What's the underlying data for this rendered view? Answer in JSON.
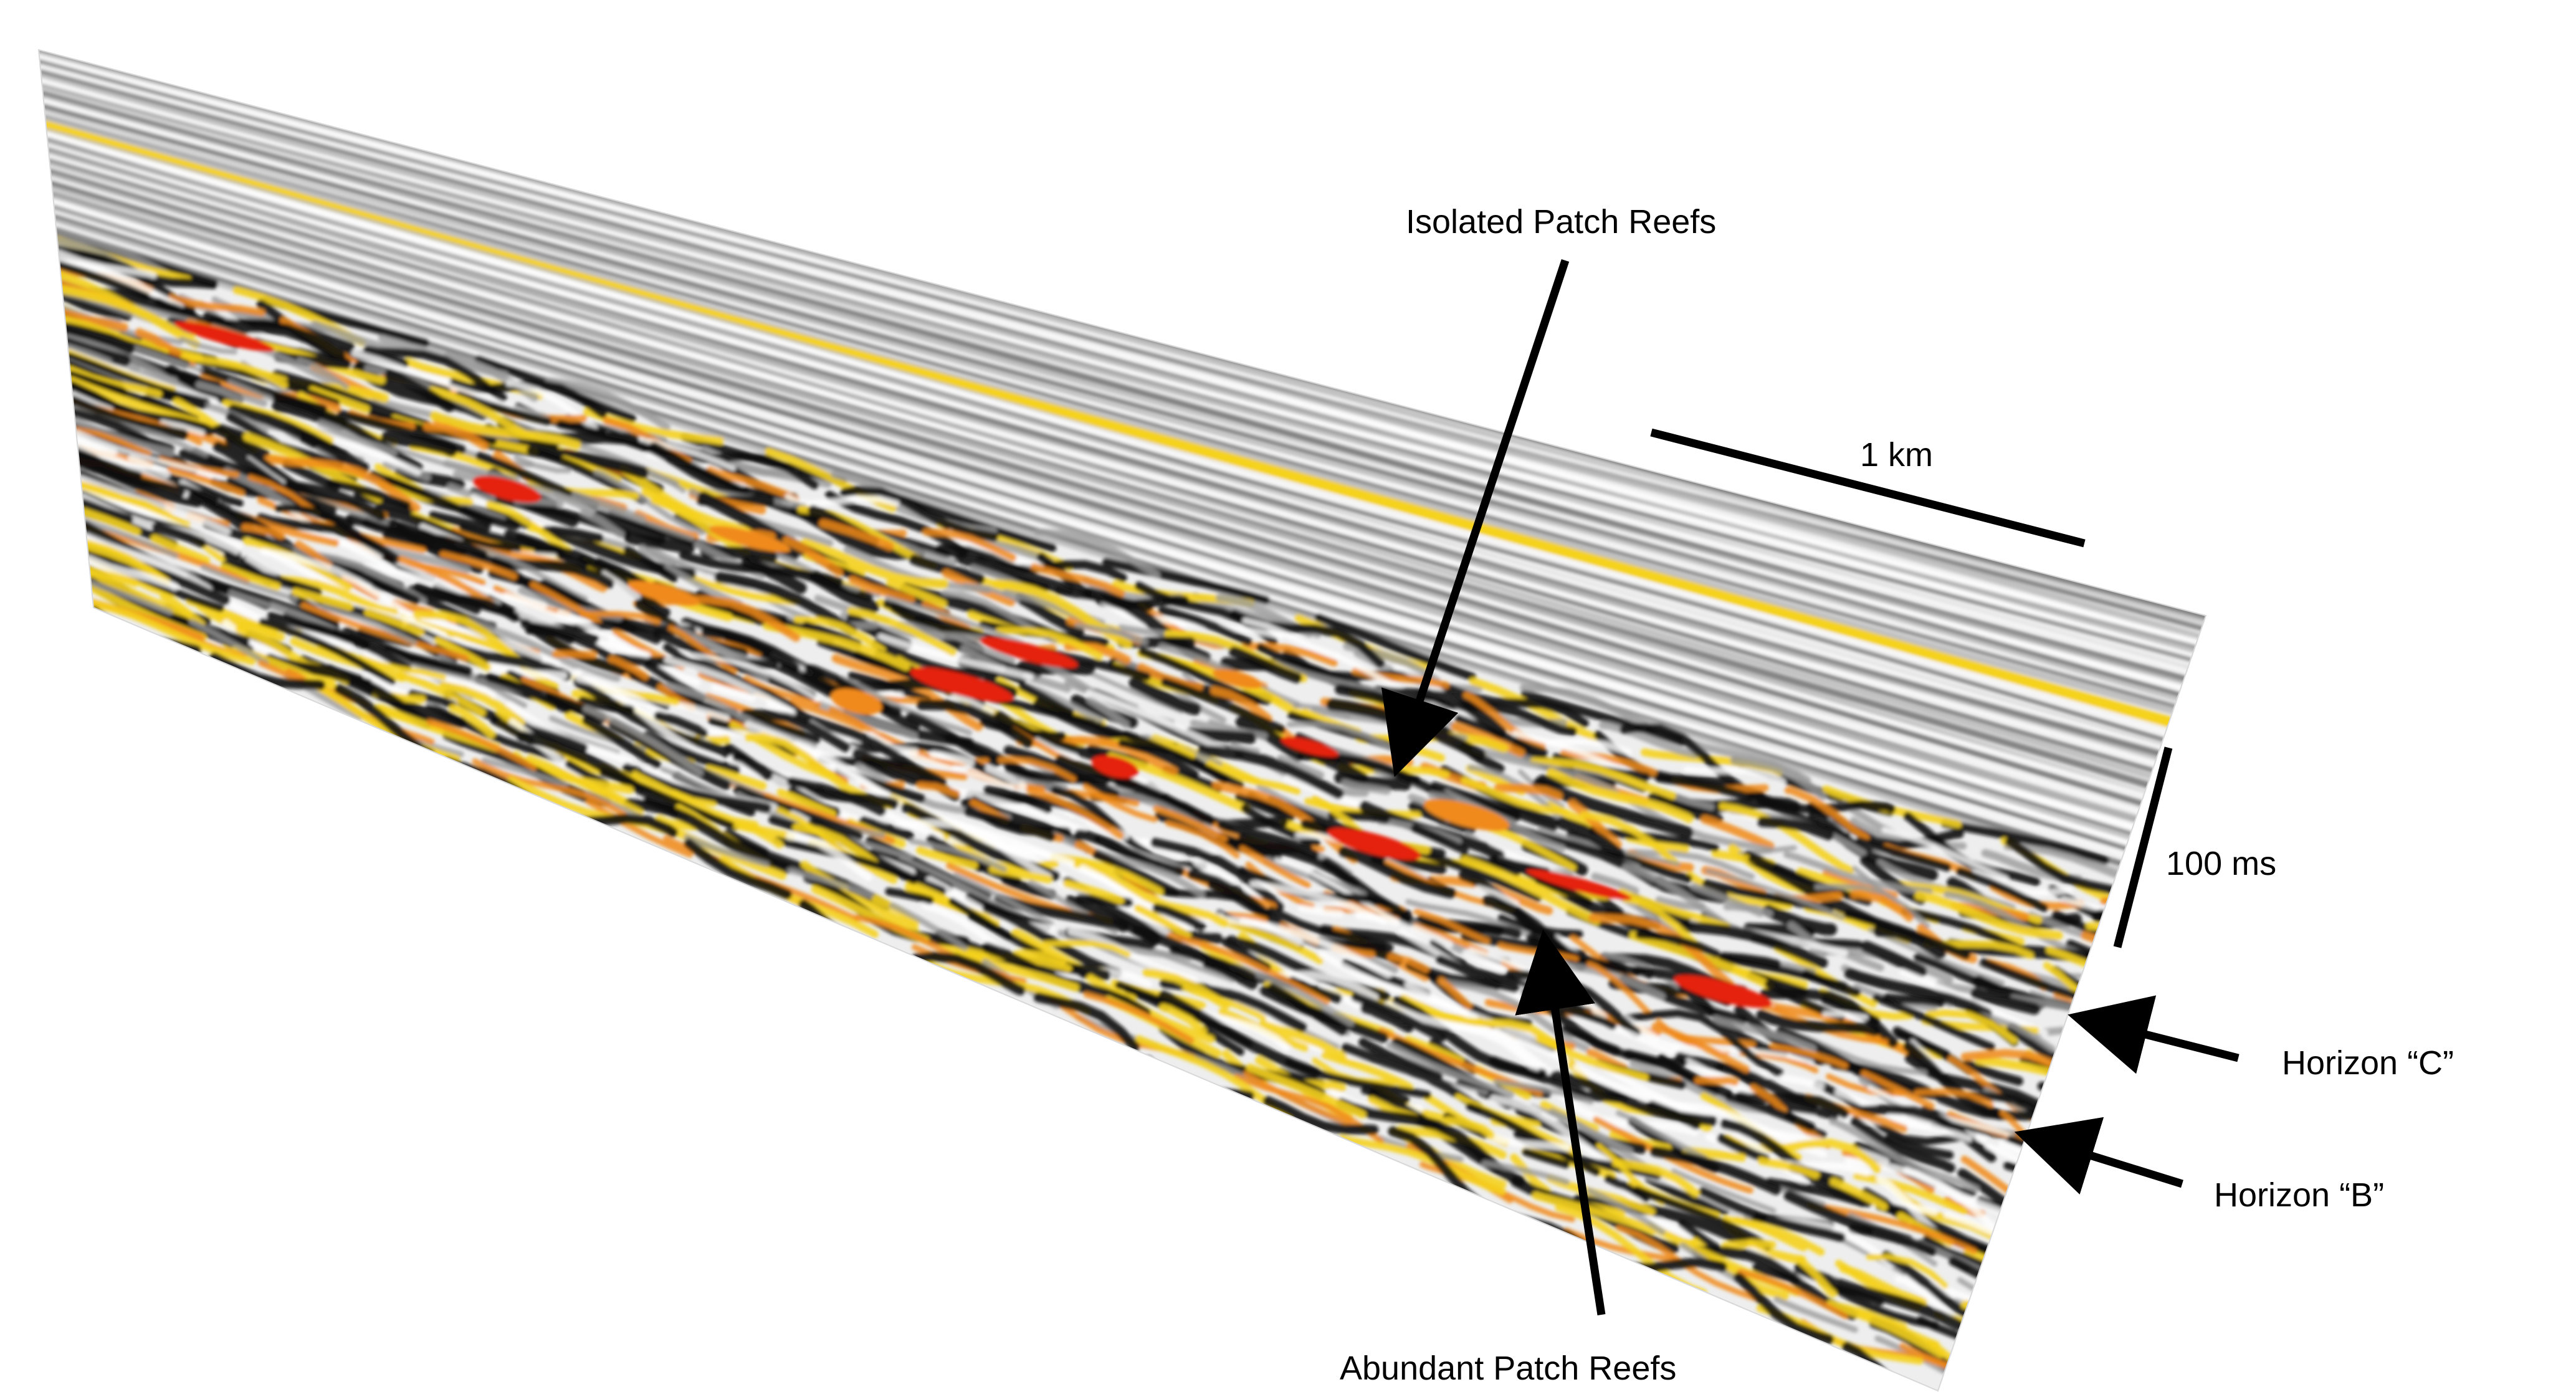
{
  "annotations": {
    "isolated_patch_reefs": "Isolated Patch Reefs",
    "abundant_patch_reefs": "Abundant Patch Reefs",
    "horizon_c": "Horizon “C”",
    "horizon_b": "Horizon “B”",
    "scale_horizontal": "1 km",
    "scale_vertical": "100 ms"
  },
  "colors": {
    "background": "#ffffff",
    "trough": "#111111",
    "peak_weak": "#f5d21e",
    "peak_mid": "#f08a1a",
    "peak_strong": "#e5230e",
    "annotation": "#000000"
  }
}
